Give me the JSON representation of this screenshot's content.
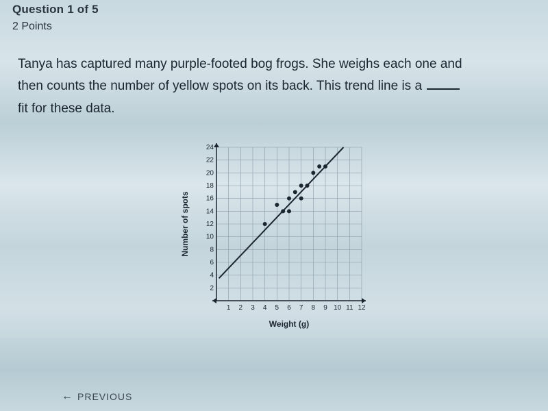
{
  "header": {
    "question_label": "Question 1 of 5",
    "points_label": "2 Points"
  },
  "question": {
    "line1": "Tanya has captured many purple-footed bog frogs. She weighs each one and",
    "line2_a": "then counts the number of yellow spots on its back. This trend line is a ",
    "line2_b": "",
    "line3": "fit for these data."
  },
  "chart": {
    "type": "scatter",
    "x_label": "Weight (g)",
    "y_label": "Number of spots",
    "xlim": [
      0,
      12
    ],
    "ylim": [
      0,
      24
    ],
    "xticks": [
      1,
      2,
      3,
      4,
      5,
      6,
      7,
      8,
      9,
      10,
      11,
      12
    ],
    "yticks": [
      2,
      4,
      6,
      8,
      10,
      12,
      14,
      16,
      18,
      20,
      22,
      24
    ],
    "grid_color": "#8a9ba8",
    "axis_color": "#1a2530",
    "point_color": "#1a2530",
    "line_color": "#1a2530",
    "background_color": "rgba(255,255,255,0)",
    "label_fontsize": 12,
    "tick_fontsize": 10,
    "point_radius": 3,
    "line_width": 2,
    "points": [
      {
        "x": 4,
        "y": 12
      },
      {
        "x": 5,
        "y": 15
      },
      {
        "x": 5.5,
        "y": 14
      },
      {
        "x": 6,
        "y": 16
      },
      {
        "x": 6,
        "y": 14
      },
      {
        "x": 6.5,
        "y": 17
      },
      {
        "x": 7,
        "y": 18
      },
      {
        "x": 7,
        "y": 16
      },
      {
        "x": 7.5,
        "y": 18
      },
      {
        "x": 8,
        "y": 20
      },
      {
        "x": 8.5,
        "y": 21
      },
      {
        "x": 9,
        "y": 21
      }
    ],
    "trend_line": {
      "x1": 0.2,
      "y1": 3.5,
      "x2": 10.5,
      "y2": 24
    }
  },
  "nav": {
    "previous": "PREVIOUS"
  }
}
